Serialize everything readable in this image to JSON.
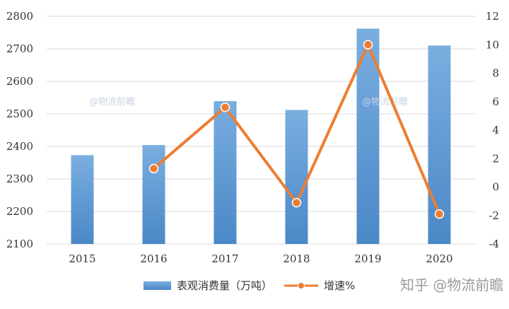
{
  "chart_data": {
    "type": "bar",
    "categories": [
      "2015",
      "2016",
      "2017",
      "2018",
      "2019",
      "2020"
    ],
    "series": [
      {
        "name": "表观消费量（万吨）",
        "kind": "bar",
        "axis": "left",
        "values": [
          2373,
          2404,
          2539,
          2512,
          2762,
          2710
        ]
      },
      {
        "name": "增速%",
        "kind": "line",
        "axis": "right",
        "values": [
          null,
          1.3,
          5.6,
          -1.1,
          10.0,
          -1.9
        ]
      }
    ],
    "y_left": {
      "lim": [
        2100,
        2800
      ],
      "ticks": [
        "2100",
        "2200",
        "2300",
        "2400",
        "2500",
        "2600",
        "2700",
        "2800"
      ]
    },
    "y_right": {
      "lim": [
        -4,
        12
      ],
      "ticks": [
        "-4",
        "-2",
        "0",
        "2",
        "4",
        "6",
        "8",
        "10",
        "12"
      ]
    },
    "grid": true,
    "legend_position": "bottom",
    "watermarks": [
      "@物流前瞻",
      "@物流前瞻"
    ],
    "brand_text": "知乎 @物流前瞻",
    "colors": {
      "bar": "#5b9bd5",
      "line": "#ed7d31",
      "grid": "#d9d9d9"
    }
  }
}
